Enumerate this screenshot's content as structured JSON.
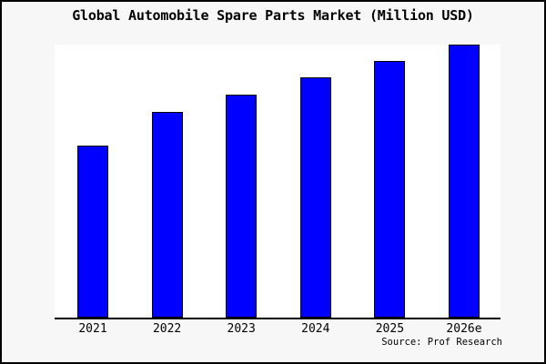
{
  "window": {
    "background_color": "#f7f7f7",
    "frame_border_color": "#000000"
  },
  "chart": {
    "title": "Global Automobile Spare Parts Market (Million USD)",
    "source_note": "Source: Prof Research",
    "plot_background": "#ffffff",
    "axis_color": "#000000",
    "bar_color": "#0000ff",
    "bar_border_color": "#000000"
  },
  "chart_data": {
    "type": "bar",
    "title": "Global Automobile Spare Parts Market (Million USD)",
    "categories": [
      "2021",
      "2022",
      "2023",
      "2024",
      "2025",
      "2026e"
    ],
    "values": [
      189,
      226,
      245,
      264,
      282,
      300
    ],
    "value_note": "relative bar heights in px; y-axis has no ticks or labels in the image",
    "xlabel": "",
    "ylabel": "",
    "ylim": [
      0,
      302
    ],
    "grid": false,
    "legend": false,
    "annotations": [
      "Source: Prof Research"
    ]
  }
}
